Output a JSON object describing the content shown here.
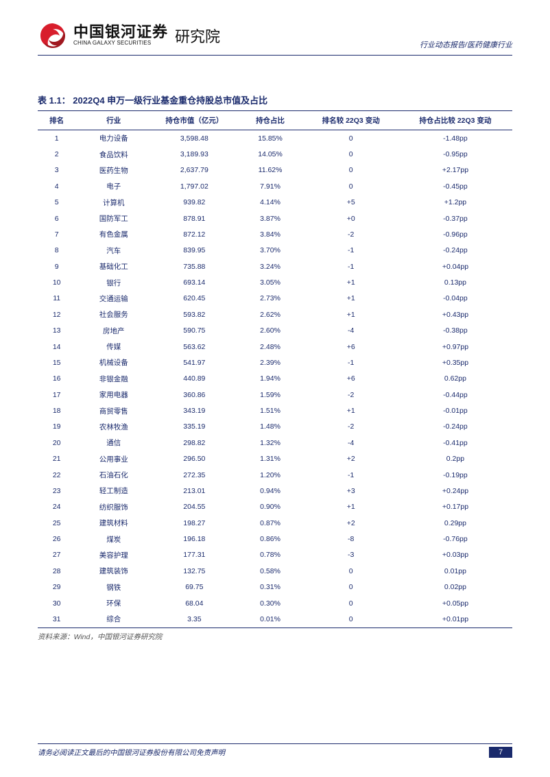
{
  "header": {
    "logo_cn": "中国银河证券",
    "logo_en": "CHINA GALAXY SECURITIES",
    "logo_right": "研究院",
    "right_text": "行业动态报告/医药健康行业"
  },
  "table": {
    "title": "表 1.1： 2022Q4 申万一级行业基金重仓持股总市值及占比",
    "columns": [
      "排名",
      "行业",
      "持仓市值（亿元）",
      "持仓占比",
      "排名较 22Q3 变动",
      "持仓占比较 22Q3 变动"
    ],
    "column_classes": [
      "col-rank",
      "col-industry",
      "col-value",
      "col-ratio",
      "col-rankchg",
      "col-ratiochg"
    ],
    "rows": [
      [
        "1",
        "电力设备",
        "3,598.48",
        "15.85%",
        "0",
        "-1.48pp"
      ],
      [
        "2",
        "食品饮料",
        "3,189.93",
        "14.05%",
        "0",
        "-0.95pp"
      ],
      [
        "3",
        "医药生物",
        "2,637.79",
        "11.62%",
        "0",
        "+2.17pp"
      ],
      [
        "4",
        "电子",
        "1,797.02",
        "7.91%",
        "0",
        "-0.45pp"
      ],
      [
        "5",
        "计算机",
        "939.82",
        "4.14%",
        "+5",
        "+1.2pp"
      ],
      [
        "6",
        "国防军工",
        "878.91",
        "3.87%",
        "+0",
        "-0.37pp"
      ],
      [
        "7",
        "有色金属",
        "872.12",
        "3.84%",
        "-2",
        "-0.96pp"
      ],
      [
        "8",
        "汽车",
        "839.95",
        "3.70%",
        "-1",
        "-0.24pp"
      ],
      [
        "9",
        "基础化工",
        "735.88",
        "3.24%",
        "-1",
        "+0.04pp"
      ],
      [
        "10",
        "银行",
        "693.14",
        "3.05%",
        "+1",
        "0.13pp"
      ],
      [
        "11",
        "交通运输",
        "620.45",
        "2.73%",
        "+1",
        "-0.04pp"
      ],
      [
        "12",
        "社会服务",
        "593.82",
        "2.62%",
        "+1",
        "+0.43pp"
      ],
      [
        "13",
        "房地产",
        "590.75",
        "2.60%",
        "-4",
        "-0.38pp"
      ],
      [
        "14",
        "传媒",
        "563.62",
        "2.48%",
        "+6",
        "+0.97pp"
      ],
      [
        "15",
        "机械设备",
        "541.97",
        "2.39%",
        "-1",
        "+0.35pp"
      ],
      [
        "16",
        "非银金融",
        "440.89",
        "1.94%",
        "+6",
        "0.62pp"
      ],
      [
        "17",
        "家用电器",
        "360.86",
        "1.59%",
        "-2",
        "-0.44pp"
      ],
      [
        "18",
        "商贸零售",
        "343.19",
        "1.51%",
        "+1",
        "-0.01pp"
      ],
      [
        "19",
        "农林牧渔",
        "335.19",
        "1.48%",
        "-2",
        "-0.24pp"
      ],
      [
        "20",
        "通信",
        "298.82",
        "1.32%",
        "-4",
        "-0.41pp"
      ],
      [
        "21",
        "公用事业",
        "296.50",
        "1.31%",
        "+2",
        "0.2pp"
      ],
      [
        "22",
        "石油石化",
        "272.35",
        "1.20%",
        "-1",
        "-0.19pp"
      ],
      [
        "23",
        "轻工制造",
        "213.01",
        "0.94%",
        "+3",
        "+0.24pp"
      ],
      [
        "24",
        "纺织服饰",
        "204.55",
        "0.90%",
        "+1",
        "+0.17pp"
      ],
      [
        "25",
        "建筑材料",
        "198.27",
        "0.87%",
        "+2",
        "0.29pp"
      ],
      [
        "26",
        "煤炭",
        "196.18",
        "0.86%",
        "-8",
        "-0.76pp"
      ],
      [
        "27",
        "美容护理",
        "177.31",
        "0.78%",
        "-3",
        "+0.03pp"
      ],
      [
        "28",
        "建筑装饰",
        "132.75",
        "0.58%",
        "0",
        "0.01pp"
      ],
      [
        "29",
        "钢铁",
        "69.75",
        "0.31%",
        "0",
        "0.02pp"
      ],
      [
        "30",
        "环保",
        "68.04",
        "0.30%",
        "0",
        "+0.05pp"
      ],
      [
        "31",
        "综合",
        "3.35",
        "0.01%",
        "0",
        "+0.01pp"
      ]
    ],
    "source": "资料来源：Wind，中国银河证券研究院"
  },
  "footer": {
    "disclaimer": "请务必阅读正文最后的中国银河证券股份有限公司免责声明",
    "page": "7"
  },
  "colors": {
    "primary": "#1a2a6c",
    "red1": "#d81e2c",
    "red2": "#a01820",
    "text_gray": "#555555"
  }
}
